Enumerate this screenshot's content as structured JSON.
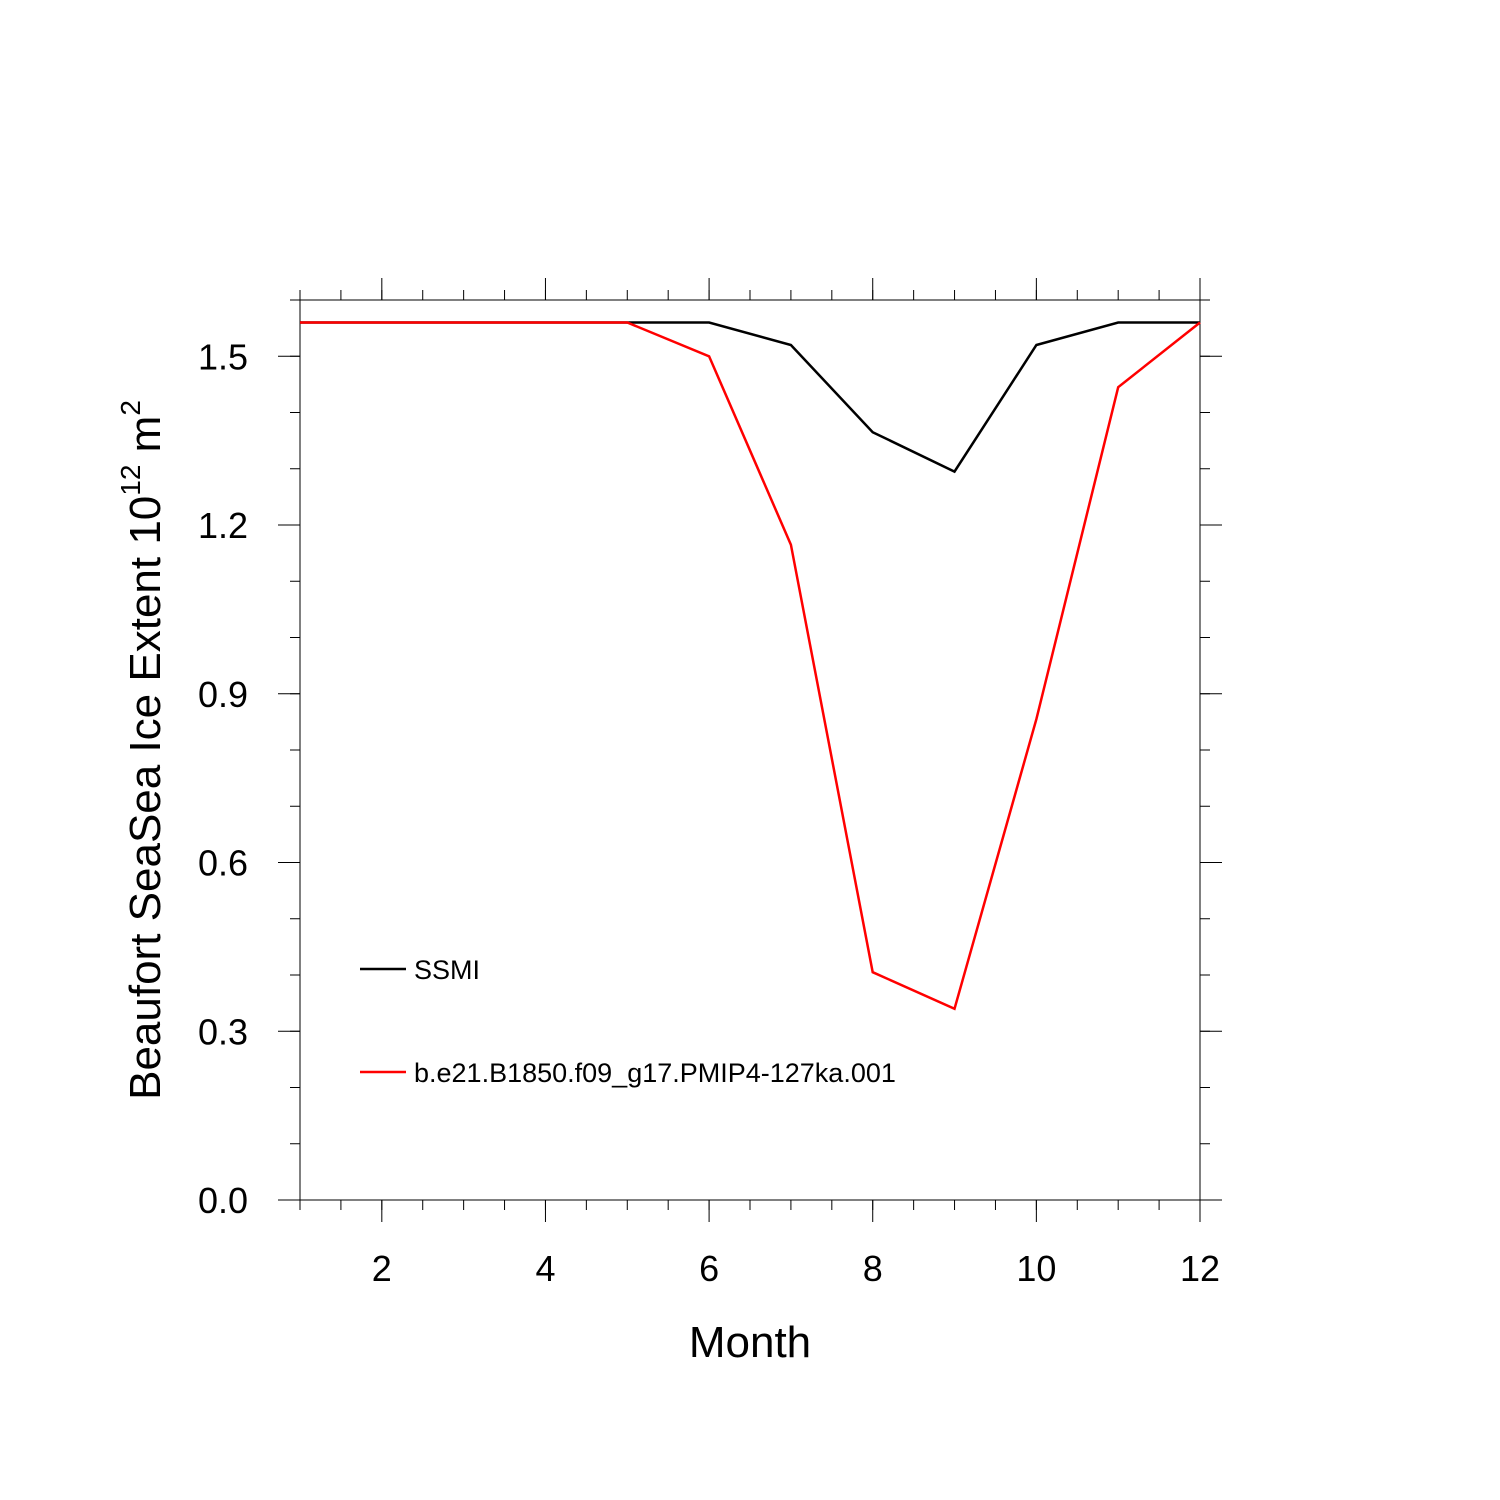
{
  "chart_data": {
    "type": "line",
    "xlabel": "Month",
    "ylabel": {
      "main": "Beaufort SeaSea Ice Extent 10",
      "exponent": "12",
      "unit": " m",
      "unit_exponent": "2"
    },
    "xlim": [
      1,
      12
    ],
    "ylim": [
      0,
      1.6
    ],
    "x_ticks": [
      "2",
      "4",
      "6",
      "8",
      "10",
      "12"
    ],
    "y_ticks": [
      "0.0",
      "0.3",
      "0.6",
      "0.9",
      "1.2",
      "1.5"
    ],
    "grid": false,
    "legend_position": "bottom-left",
    "x": [
      1,
      2,
      3,
      4,
      5,
      6,
      7,
      8,
      9,
      10,
      11,
      12
    ],
    "series": [
      {
        "name": "SSMI",
        "color": "#000000",
        "values": [
          1.56,
          1.56,
          1.56,
          1.56,
          1.56,
          1.56,
          1.52,
          1.365,
          1.295,
          1.52,
          1.56,
          1.56
        ]
      },
      {
        "name": "b.e21.B1850.f09_g17.PMIP4-127ka.001",
        "color": "#ff0000",
        "values": [
          1.56,
          1.56,
          1.56,
          1.56,
          1.56,
          1.5,
          1.165,
          0.405,
          0.34,
          0.855,
          1.445,
          1.56
        ]
      }
    ]
  }
}
